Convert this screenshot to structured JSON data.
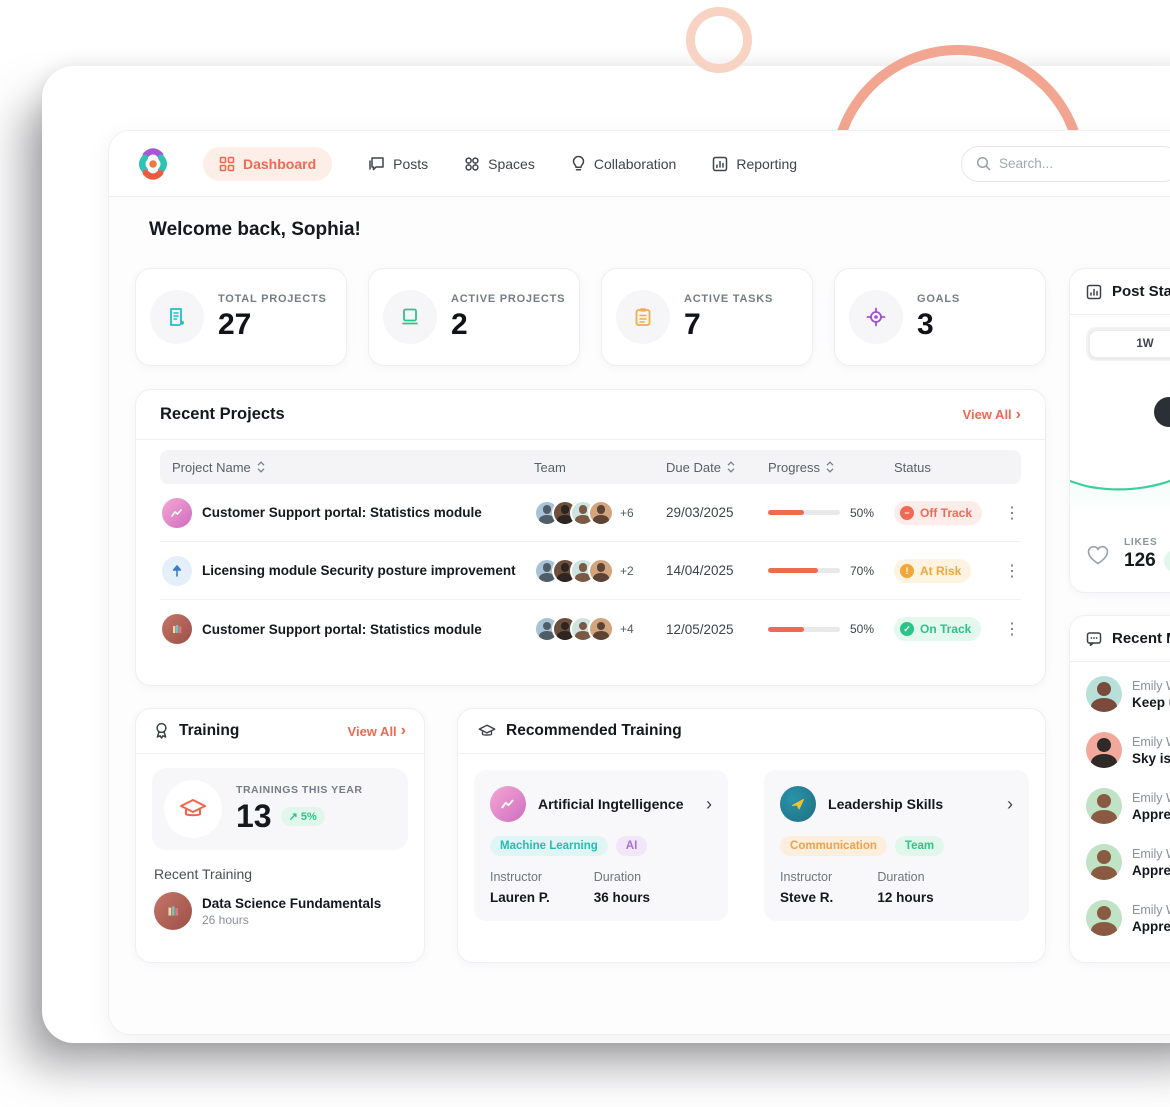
{
  "colors": {
    "accent": "#ee6a50",
    "green": "#2cc487",
    "teal": "#1ec0c7",
    "amber": "#f0ac4e",
    "purple": "#a34fd4",
    "chart_line": "#3ecf9a"
  },
  "nav": {
    "items": [
      {
        "label": "Dashboard"
      },
      {
        "label": "Posts"
      },
      {
        "label": "Spaces"
      },
      {
        "label": "Collaboration"
      },
      {
        "label": "Reporting"
      }
    ],
    "search_placeholder": "Search..."
  },
  "welcome_title": "Welcome back, Sophia!",
  "stats": [
    {
      "label": "TOTAL PROJECTS",
      "value": "27"
    },
    {
      "label": "ACTIVE PROJECTS",
      "value": "2"
    },
    {
      "label": "ACTIVE TASKS",
      "value": "7"
    },
    {
      "label": "GOALS",
      "value": "3"
    }
  ],
  "recent_projects": {
    "title": "Recent Projects",
    "view_all": "View All",
    "columns": {
      "name": "Project Name",
      "team": "Team",
      "due": "Due Date",
      "progress": "Progress",
      "status": "Status"
    },
    "rows": [
      {
        "name": "Customer Support portal: Statistics module",
        "team_extra": "+6",
        "due": "29/03/2025",
        "progress": 50,
        "progress_label": "50%",
        "status": "Off Track"
      },
      {
        "name": "Licensing module Security posture improvement",
        "team_extra": "+2",
        "due": "14/04/2025",
        "progress": 70,
        "progress_label": "70%",
        "status": "At Risk"
      },
      {
        "name": "Customer Support portal: Statistics module",
        "team_extra": "+4",
        "due": "12/05/2025",
        "progress": 50,
        "progress_label": "50%",
        "status": "On Track"
      }
    ]
  },
  "training": {
    "title": "Training",
    "view_all": "View All",
    "stat_label": "TRAININGS THIS YEAR",
    "stat_value": "13",
    "stat_delta": "↗ 5%",
    "recent_label": "Recent Training",
    "recent_item": {
      "name": "Data Science Fundamentals",
      "duration": "26 hours"
    }
  },
  "recommended": {
    "title": "Recommended Training",
    "labels": {
      "instructor": "Instructor",
      "duration": "Duration"
    },
    "cards": [
      {
        "title": "Artificial Ingtelligence",
        "tags": [
          "Machine Learning",
          "AI"
        ],
        "instructor": "Lauren P.",
        "duration": "36 hours"
      },
      {
        "title": "Leadership Skills",
        "tags": [
          "Communication",
          "Team"
        ],
        "instructor": "Steve R.",
        "duration": "12 hours"
      }
    ]
  },
  "post_stats": {
    "title": "Post Stats",
    "range_selected": "1W",
    "likes_label": "LIKES",
    "likes_value": "126",
    "likes_delta": "↗",
    "chart_data": {
      "type": "area",
      "values": [
        20,
        16,
        14,
        13,
        13,
        14,
        16,
        19,
        24,
        30,
        36,
        41,
        44,
        46,
        52,
        60,
        68,
        74,
        80
      ],
      "line_color": "#3ecf9a"
    }
  },
  "recent_messages": {
    "title": "Recent Messages",
    "items": [
      {
        "name": "Emily W",
        "preview": "Keep u"
      },
      {
        "name": "Emily W",
        "preview": "Sky is t"
      },
      {
        "name": "Emily W",
        "preview": "Apprec"
      },
      {
        "name": "Emily W",
        "preview": "Apprec"
      },
      {
        "name": "Emily W",
        "preview": "Apprec"
      }
    ]
  }
}
